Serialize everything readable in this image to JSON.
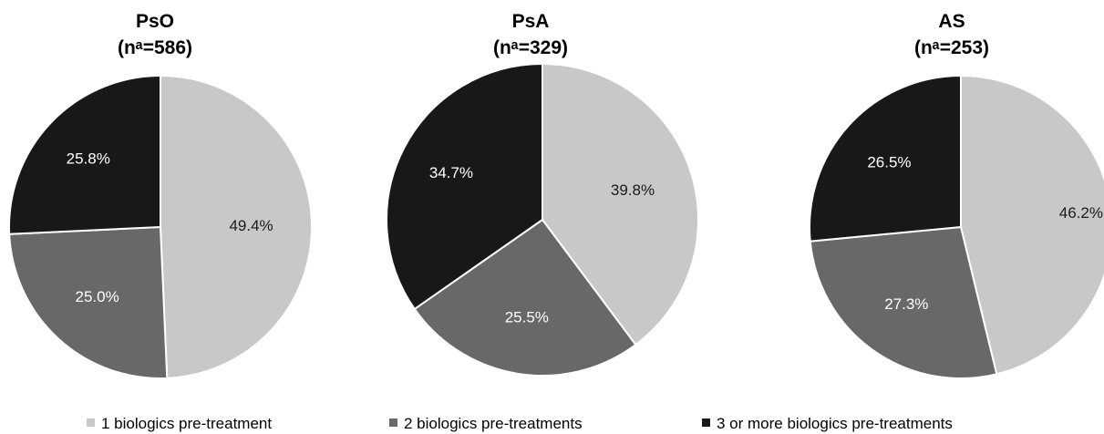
{
  "colors": {
    "series_1": "#c8c8c8",
    "series_2": "#686868",
    "series_3": "#181818",
    "label_on_light": "#1a1a1a",
    "label_on_dark": "#ffffff",
    "slice_border": "#ffffff"
  },
  "chart_data": [
    {
      "type": "pie",
      "title": "PsO",
      "subtitle": "(nᵃ=586)",
      "start": "12 o'clock",
      "direction": "clockwise",
      "categories": [
        "1 biologics pre-treatment",
        "2 biologics pre-treatments",
        "3 or more biologics pre-treatments"
      ],
      "values": [
        49.4,
        25.0,
        25.8
      ],
      "labels": [
        "49.4%",
        "25.0%",
        "25.8%"
      ]
    },
    {
      "type": "pie",
      "title": "PsA",
      "subtitle": "(nᵃ=329)",
      "start": "12 o'clock",
      "direction": "clockwise",
      "categories": [
        "1 biologics pre-treatment",
        "2 biologics pre-treatments",
        "3 or more biologics pre-treatments"
      ],
      "values": [
        39.8,
        25.5,
        34.7
      ],
      "labels": [
        "39.8%",
        "25.5%",
        "34.7%"
      ]
    },
    {
      "type": "pie",
      "title": "AS",
      "subtitle": "(nᵃ=253)",
      "start": "12 o'clock",
      "direction": "clockwise",
      "categories": [
        "1 biologics pre-treatment",
        "2 biologics pre-treatments",
        "3 or more biologics pre-treatments"
      ],
      "values": [
        46.2,
        27.3,
        26.5
      ],
      "labels": [
        "46.2%",
        "27.3%",
        "26.5%"
      ]
    }
  ],
  "legend": {
    "placement": "bottom",
    "items": [
      {
        "label": "1 biologics pre-treatment",
        "color": "#c8c8c8"
      },
      {
        "label": "2 biologics pre-treatments",
        "color": "#686868"
      },
      {
        "label": "3 or more biologics pre-treatments",
        "color": "#181818"
      }
    ]
  }
}
